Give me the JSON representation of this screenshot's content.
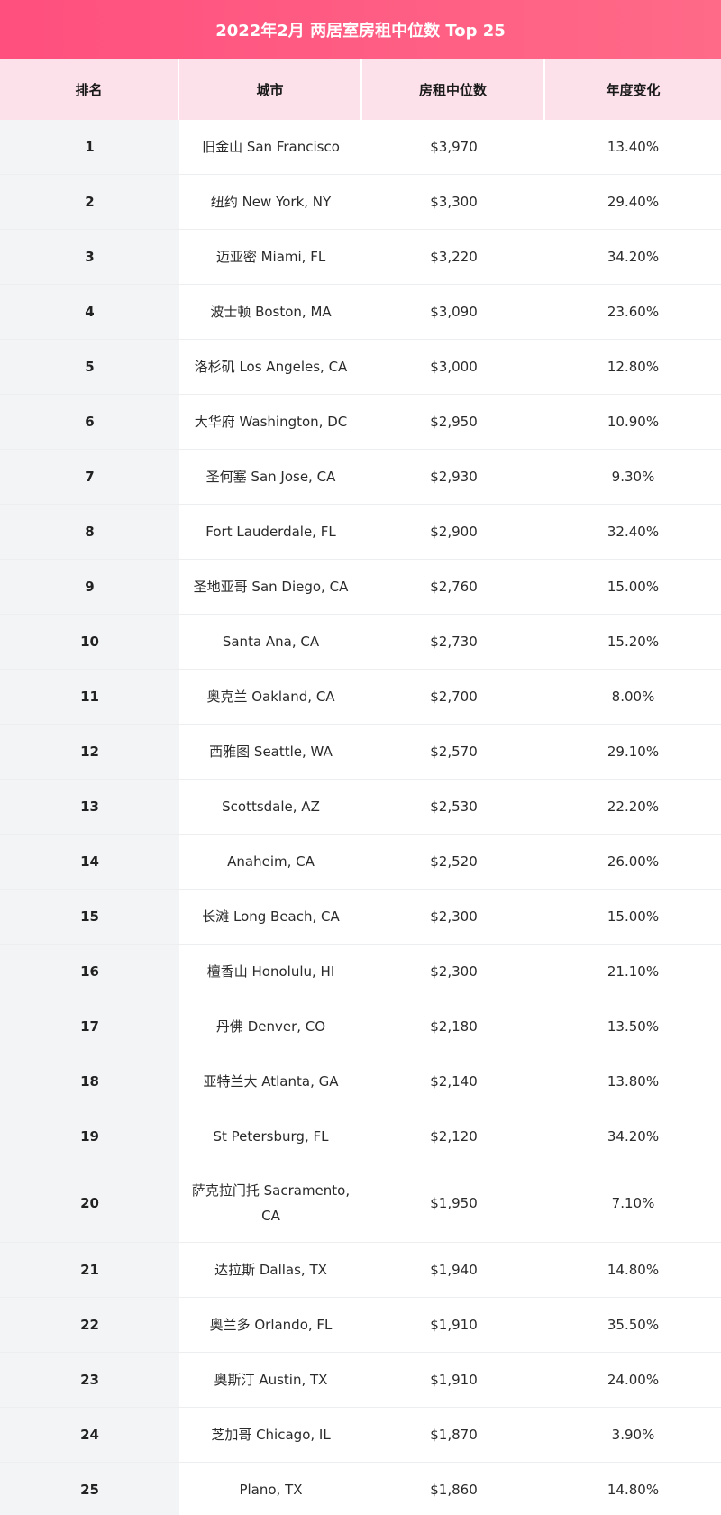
{
  "title": "2022年2月 两居室房租中位数 Top 25",
  "headers": {
    "rank": "排名",
    "city": "城市",
    "rent": "房租中位数",
    "change": "年度变化"
  },
  "rows": [
    {
      "rank": "1",
      "city": "旧金山 San Francisco",
      "rent": "$3,970",
      "change": "13.40%"
    },
    {
      "rank": "2",
      "city": "纽约 New York, NY",
      "rent": "$3,300",
      "change": "29.40%"
    },
    {
      "rank": "3",
      "city": "迈亚密 Miami, FL",
      "rent": "$3,220",
      "change": "34.20%"
    },
    {
      "rank": "4",
      "city": "波士顿 Boston, MA",
      "rent": "$3,090",
      "change": "23.60%"
    },
    {
      "rank": "5",
      "city": "洛杉矶 Los Angeles, CA",
      "rent": "$3,000",
      "change": "12.80%"
    },
    {
      "rank": "6",
      "city": "大华府 Washington, DC",
      "rent": "$2,950",
      "change": "10.90%"
    },
    {
      "rank": "7",
      "city": "圣何塞 San Jose, CA",
      "rent": "$2,930",
      "change": "9.30%"
    },
    {
      "rank": "8",
      "city": "Fort Lauderdale, FL",
      "rent": "$2,900",
      "change": "32.40%"
    },
    {
      "rank": "9",
      "city": "圣地亚哥 San Diego, CA",
      "rent": "$2,760",
      "change": "15.00%"
    },
    {
      "rank": "10",
      "city": "Santa Ana, CA",
      "rent": "$2,730",
      "change": "15.20%"
    },
    {
      "rank": "11",
      "city": "奥克兰 Oakland, CA",
      "rent": "$2,700",
      "change": "8.00%"
    },
    {
      "rank": "12",
      "city": "西雅图 Seattle, WA",
      "rent": "$2,570",
      "change": "29.10%"
    },
    {
      "rank": "13",
      "city": "Scottsdale, AZ",
      "rent": "$2,530",
      "change": "22.20%"
    },
    {
      "rank": "14",
      "city": "Anaheim, CA",
      "rent": "$2,520",
      "change": "26.00%"
    },
    {
      "rank": "15",
      "city": "长滩 Long Beach, CA",
      "rent": "$2,300",
      "change": "15.00%"
    },
    {
      "rank": "16",
      "city": "檀香山 Honolulu, HI",
      "rent": "$2,300",
      "change": "21.10%"
    },
    {
      "rank": "17",
      "city": "丹佛 Denver, CO",
      "rent": "$2,180",
      "change": "13.50%"
    },
    {
      "rank": "18",
      "city": "亚特兰大 Atlanta, GA",
      "rent": "$2,140",
      "change": "13.80%"
    },
    {
      "rank": "19",
      "city": "St Petersburg, FL",
      "rent": "$2,120",
      "change": "34.20%"
    },
    {
      "rank": "20",
      "city": "萨克拉门托 Sacramento, CA",
      "rent": "$1,950",
      "change": "7.10%"
    },
    {
      "rank": "21",
      "city": "达拉斯 Dallas, TX",
      "rent": "$1,940",
      "change": "14.80%"
    },
    {
      "rank": "22",
      "city": "奥兰多 Orlando, FL",
      "rent": "$1,910",
      "change": "35.50%"
    },
    {
      "rank": "23",
      "city": "奥斯汀 Austin, TX",
      "rent": "$1,910",
      "change": "24.00%"
    },
    {
      "rank": "24",
      "city": "芝加哥 Chicago, IL",
      "rent": "$1,870",
      "change": "3.90%"
    },
    {
      "rank": "25",
      "city": "Plano, TX",
      "rent": "$1,860",
      "change": "14.80%"
    }
  ],
  "colors": {
    "title_bg": "#ff5a82",
    "header_bg": "#fde1ea",
    "rank_col_bg": "#f2f4f6"
  }
}
